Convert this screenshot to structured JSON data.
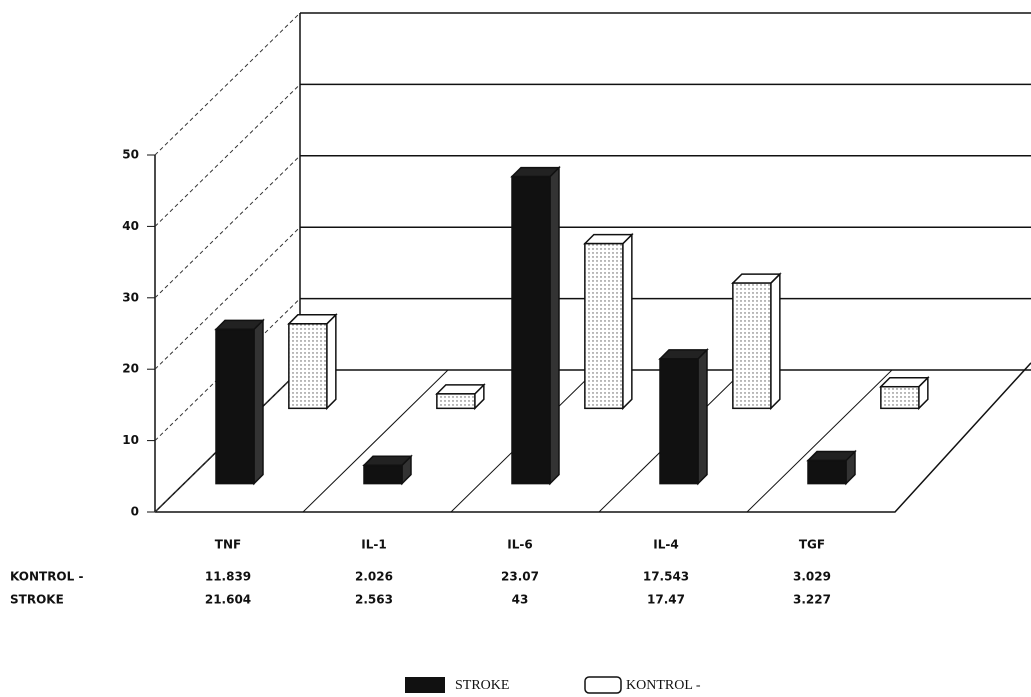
{
  "chart_data": {
    "type": "bar3d",
    "categories": [
      "TNF",
      "IL-1",
      "IL-6",
      "IL-4",
      "TGF"
    ],
    "series": [
      {
        "name": "KONTROL -",
        "color": "#ffffff",
        "values": [
          11.839,
          2.026,
          23.07,
          17.543,
          3.029
        ]
      },
      {
        "name": "STROKE",
        "color": "#111111",
        "values": [
          21.604,
          2.563,
          43,
          17.47,
          3.227
        ]
      }
    ],
    "ylim": [
      0,
      50
    ],
    "yticks": [
      0,
      10,
      20,
      30,
      40,
      50
    ],
    "grid": true
  }
}
